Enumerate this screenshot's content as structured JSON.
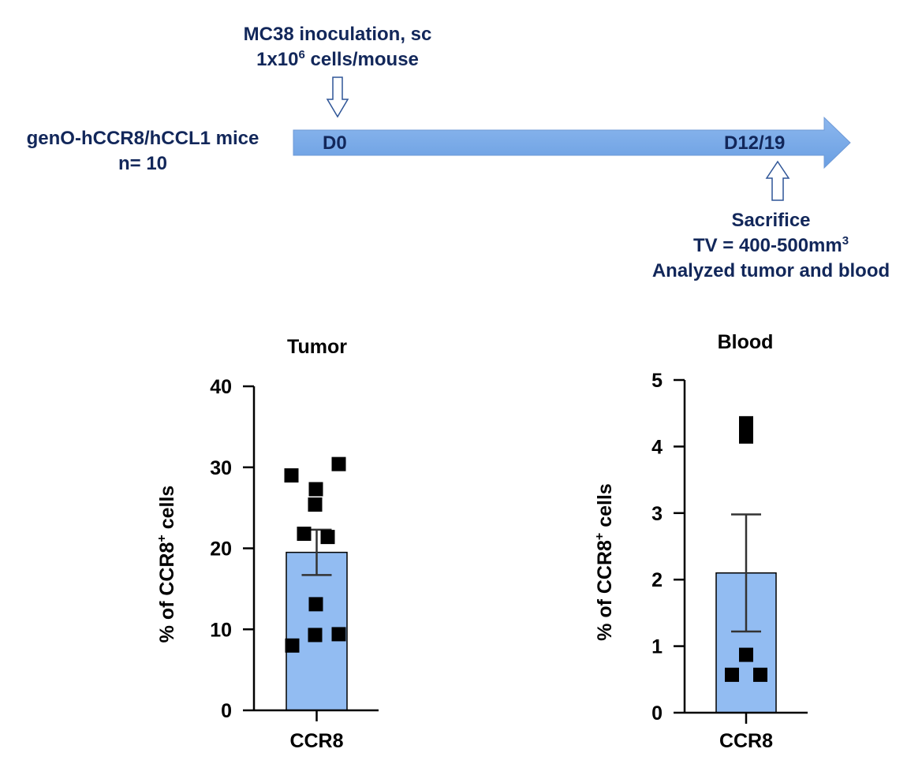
{
  "timeline": {
    "mice_line1": "genO-hCCR8/hCCL1 mice",
    "mice_line2": "n= 10",
    "inoc_line1": "MC38 inoculation, sc",
    "inoc_line2_pre": "1x10",
    "inoc_line2_sup": "6",
    "inoc_line2_post": " cells/mouse",
    "day_start": "D0",
    "day_end": "D12/19",
    "sac_line1": "Sacrifice",
    "sac_line2_pre": "TV = 400-500mm",
    "sac_line2_sup": "3",
    "sac_line3": "Analyzed tumor and blood",
    "arrow_color": "#7aaae8",
    "text_color": "#12275a"
  },
  "chart_data": [
    {
      "type": "bar",
      "title": "Tumor",
      "ylabel": "% of CCR8+ cells",
      "ylabel_main": "% of CCR8",
      "ylabel_sup": "+",
      "ylabel_tail": " cells",
      "categories": [
        "CCR8"
      ],
      "values": [
        19.5
      ],
      "error_sem": [
        2.8
      ],
      "points": [
        8.0,
        9.4,
        9.3,
        13.1,
        21.8,
        21.4,
        25.4,
        27.3,
        29.0,
        30.4
      ],
      "ylim": [
        0,
        40
      ],
      "yticks": [
        0,
        10,
        20,
        30,
        40
      ],
      "bar_color": "#92bcf2"
    },
    {
      "type": "bar",
      "title": "Blood",
      "ylabel": "% of CCR8+ cells",
      "ylabel_main": "% of CCR8",
      "ylabel_sup": "+",
      "ylabel_tail": " cells",
      "categories": [
        "CCR8"
      ],
      "values": [
        2.1
      ],
      "error_sem": [
        0.88
      ],
      "points": [
        0.57,
        0.57,
        0.87,
        4.15,
        4.35
      ],
      "ylim": [
        0,
        5
      ],
      "yticks": [
        0,
        1,
        2,
        3,
        4,
        5
      ],
      "bar_color": "#92bcf2"
    }
  ]
}
